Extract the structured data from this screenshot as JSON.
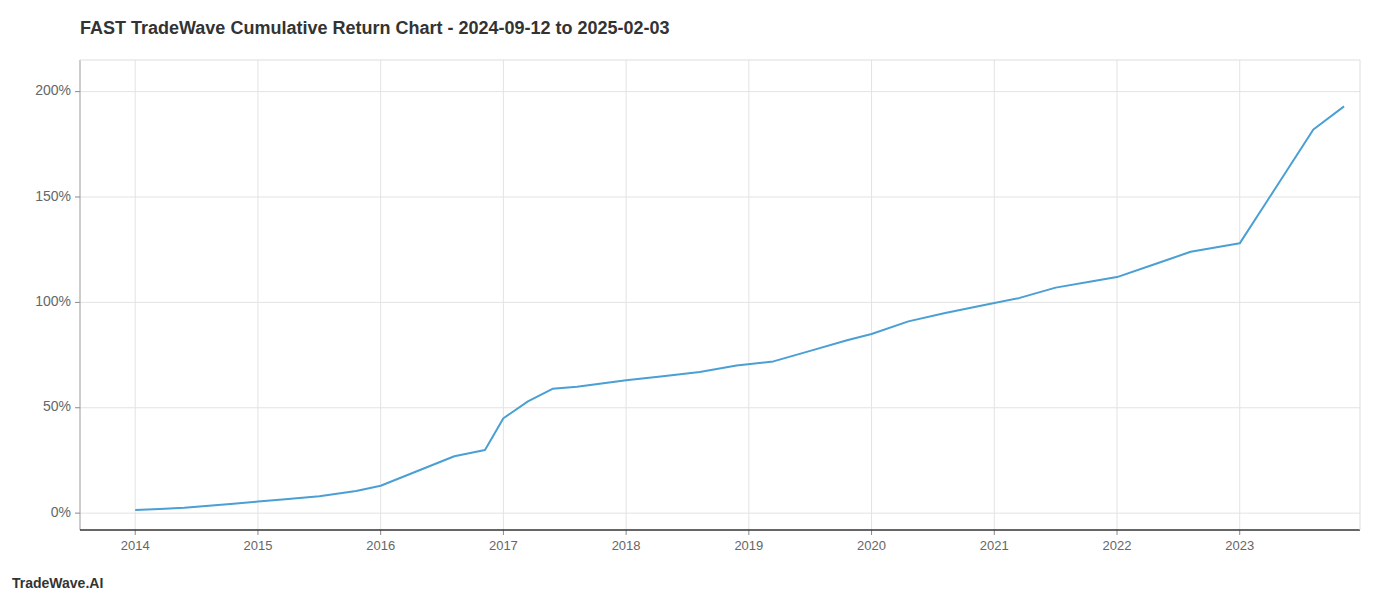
{
  "chart_data": {
    "type": "line",
    "title": "FAST TradeWave Cumulative Return Chart - 2024-09-12 to 2025-02-03",
    "annotations": [
      "TradeWave.AI"
    ],
    "color": "#4a9fd4",
    "grid": true,
    "x": [
      2014.0,
      2014.2,
      2014.4,
      2014.6,
      2014.8,
      2015.0,
      2015.2,
      2015.5,
      2015.8,
      2016.0,
      2016.3,
      2016.6,
      2016.85,
      2017.0,
      2017.2,
      2017.4,
      2017.6,
      2017.8,
      2018.0,
      2018.3,
      2018.6,
      2018.9,
      2019.2,
      2019.5,
      2019.8,
      2020.0,
      2020.3,
      2020.6,
      2020.9,
      2021.2,
      2021.5,
      2021.8,
      2022.0,
      2022.3,
      2022.6,
      2022.8,
      2023.0,
      2023.3,
      2023.6,
      2023.85
    ],
    "values": [
      1.5,
      2.0,
      2.5,
      3.5,
      4.5,
      5.5,
      6.5,
      8.0,
      10.5,
      13.0,
      20.0,
      27.0,
      30.0,
      45.0,
      53.0,
      59.0,
      60.0,
      61.5,
      63.0,
      65.0,
      67.0,
      70.0,
      72.0,
      77.0,
      82.0,
      85.0,
      91.0,
      95.0,
      98.5,
      102.0,
      107.0,
      110.0,
      112.0,
      118.0,
      124.0,
      126.0,
      128.0,
      155.0,
      182.0,
      193.0
    ],
    "xlim": [
      2013.55,
      2023.98
    ],
    "xticks": [
      2014,
      2015,
      2016,
      2017,
      2018,
      2019,
      2020,
      2021,
      2022,
      2023
    ],
    "ylim": [
      -8,
      215
    ],
    "yticks": [
      {
        "value": 0,
        "label": "0%"
      },
      {
        "value": 50,
        "label": "50%"
      },
      {
        "value": 100,
        "label": "100%"
      },
      {
        "value": 150,
        "label": "150%"
      },
      {
        "value": 200,
        "label": "200%"
      }
    ]
  }
}
